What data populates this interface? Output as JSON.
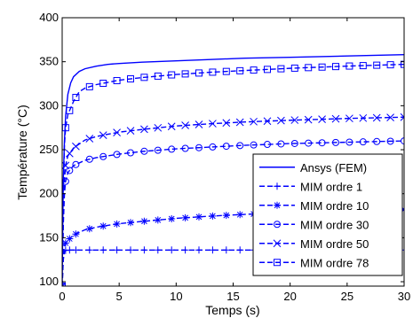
{
  "chart_data": {
    "type": "line",
    "xlabel": "Temps (s)",
    "ylabel": "Température (°C)",
    "xlim": [
      0,
      30
    ],
    "ylim": [
      95,
      400
    ],
    "xticks": [
      0,
      5,
      10,
      15,
      20,
      25,
      30
    ],
    "yticks": [
      100,
      150,
      200,
      250,
      300,
      350,
      400
    ],
    "grid": false,
    "legend_position": "bottom-right",
    "series_color": "#0000ff",
    "series": [
      {
        "name": "Ansys (FEM)",
        "marker": "none",
        "linestyle": "solid",
        "x": [
          0,
          0.05,
          0.1,
          0.2,
          0.3,
          0.5,
          0.75,
          1,
          1.5,
          2,
          3,
          4,
          5,
          7,
          10,
          13,
          16,
          20,
          25,
          30
        ],
        "y": [
          95,
          160,
          215,
          260,
          288,
          313,
          326,
          333,
          339,
          342,
          345,
          347,
          348,
          349.5,
          351,
          352.5,
          354,
          355,
          356.5,
          358
        ]
      },
      {
        "name": "MIM ordre 1",
        "marker": "plus",
        "linestyle": "dashed",
        "x": [
          0,
          0.1,
          0.2,
          0.3,
          0.5,
          1,
          2,
          5,
          10,
          15,
          20,
          25,
          30
        ],
        "y": [
          95,
          125,
          134,
          135.5,
          136,
          136,
          136,
          136,
          136,
          136,
          136,
          136,
          136
        ]
      },
      {
        "name": "MIM ordre 10",
        "marker": "star",
        "linestyle": "dashed",
        "x": [
          0,
          0.1,
          0.2,
          0.3,
          0.5,
          1,
          2,
          3,
          5,
          7,
          10,
          13,
          16,
          20,
          25,
          30
        ],
        "y": [
          95,
          130,
          140,
          144,
          147,
          153,
          159,
          162,
          166,
          168.5,
          172,
          174.5,
          176.5,
          178.5,
          180.5,
          182
        ]
      },
      {
        "name": "MIM ordre 30",
        "marker": "circle",
        "linestyle": "dashed",
        "x": [
          0,
          0.1,
          0.2,
          0.3,
          0.5,
          1,
          2,
          3,
          5,
          7,
          10,
          13,
          16,
          20,
          25,
          30
        ],
        "y": [
          95,
          165,
          200,
          214,
          224,
          232,
          238,
          241,
          245,
          248,
          251,
          253,
          255,
          257,
          258.5,
          260
        ]
      },
      {
        "name": "MIM ordre 50",
        "marker": "x",
        "linestyle": "dashed",
        "x": [
          0,
          0.1,
          0.2,
          0.3,
          0.5,
          1,
          2,
          3,
          5,
          7,
          10,
          13,
          16,
          20,
          25,
          30
        ],
        "y": [
          95,
          175,
          215,
          232,
          243,
          252,
          261,
          265,
          270,
          273,
          277,
          279.5,
          281.5,
          283.5,
          285.5,
          287
        ]
      },
      {
        "name": "MIM ordre 78",
        "marker": "square",
        "linestyle": "dashed",
        "x": [
          0,
          0.1,
          0.2,
          0.3,
          0.5,
          1,
          1.5,
          2,
          3,
          5,
          7,
          10,
          13,
          16,
          20,
          25,
          30
        ],
        "y": [
          95,
          200,
          255,
          275,
          290,
          305,
          316,
          320,
          324,
          329,
          332,
          335.5,
          338,
          340,
          342.5,
          345,
          347
        ]
      }
    ]
  }
}
